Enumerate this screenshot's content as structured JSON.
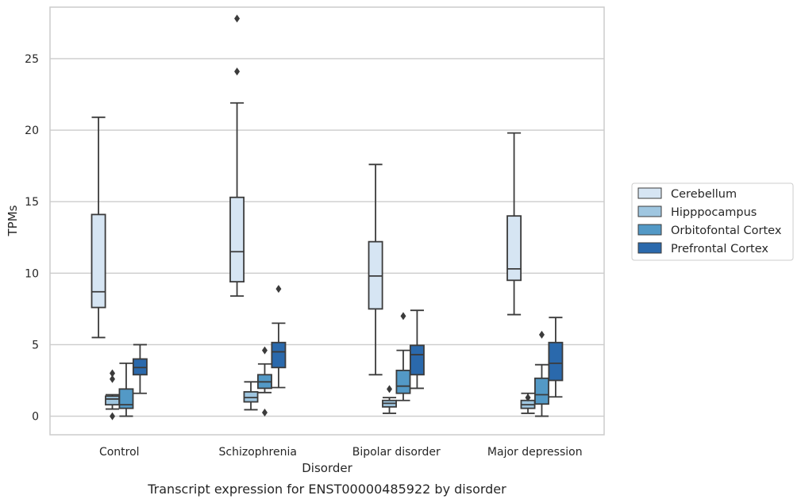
{
  "caption": "Transcript expression for ENST00000485922 by disorder",
  "chart_data": {
    "type": "box",
    "xlabel": "Disorder",
    "ylabel": "TPMs",
    "ylim": [
      -1.3,
      28.6
    ],
    "yticks": [
      0,
      5,
      10,
      15,
      20,
      25
    ],
    "grid": "horizontal",
    "legend_position": "right",
    "categories": [
      "Control",
      "Schizophrenia",
      "Bipolar disorder",
      "Major depression"
    ],
    "series": [
      {
        "name": "Cerebellum",
        "color": "#d6e5f3",
        "boxes": [
          {
            "whisker_low": 5.5,
            "q1": 7.6,
            "median": 8.7,
            "q3": 14.1,
            "whisker_high": 20.9,
            "outliers": []
          },
          {
            "whisker_low": 8.4,
            "q1": 9.4,
            "median": 11.5,
            "q3": 15.3,
            "whisker_high": 21.9,
            "outliers": [
              24.1,
              27.8
            ]
          },
          {
            "whisker_low": 2.9,
            "q1": 7.5,
            "median": 9.8,
            "q3": 12.2,
            "whisker_high": 17.6,
            "outliers": []
          },
          {
            "whisker_low": 7.1,
            "q1": 9.5,
            "median": 10.3,
            "q3": 14.0,
            "whisker_high": 19.8,
            "outliers": []
          }
        ]
      },
      {
        "name": "Hipppocampus",
        "color": "#9fc6e0",
        "boxes": [
          {
            "whisker_low": 0.5,
            "q1": 0.8,
            "median": 1.2,
            "q3": 1.4,
            "whisker_high": 1.5,
            "outliers": [
              0.0,
              2.6,
              3.0
            ]
          },
          {
            "whisker_low": 0.45,
            "q1": 1.0,
            "median": 1.3,
            "q3": 1.7,
            "whisker_high": 2.4,
            "outliers": []
          },
          {
            "whisker_low": 0.2,
            "q1": 0.65,
            "median": 0.9,
            "q3": 1.1,
            "whisker_high": 1.3,
            "outliers": [
              1.9
            ]
          },
          {
            "whisker_low": 0.2,
            "q1": 0.55,
            "median": 0.8,
            "q3": 1.1,
            "whisker_high": 1.6,
            "outliers": [
              1.3
            ]
          }
        ]
      },
      {
        "name": "Orbitofontal Cortex",
        "color": "#5399c6",
        "boxes": [
          {
            "whisker_low": 0.0,
            "q1": 0.55,
            "median": 0.8,
            "q3": 1.9,
            "whisker_high": 3.7,
            "outliers": []
          },
          {
            "whisker_low": 1.65,
            "q1": 1.95,
            "median": 2.4,
            "q3": 2.9,
            "whisker_high": 3.65,
            "outliers": [
              0.25,
              4.6
            ]
          },
          {
            "whisker_low": 1.1,
            "q1": 1.6,
            "median": 2.1,
            "q3": 3.2,
            "whisker_high": 4.6,
            "outliers": [
              7.0
            ]
          },
          {
            "whisker_low": 0.0,
            "q1": 0.85,
            "median": 1.5,
            "q3": 2.65,
            "whisker_high": 3.6,
            "outliers": [
              5.7
            ]
          }
        ]
      },
      {
        "name": "Prefrontal Cortex",
        "color": "#2a69ac",
        "boxes": [
          {
            "whisker_low": 1.6,
            "q1": 2.9,
            "median": 3.4,
            "q3": 4.0,
            "whisker_high": 5.0,
            "outliers": []
          },
          {
            "whisker_low": 2.0,
            "q1": 3.4,
            "median": 4.5,
            "q3": 5.15,
            "whisker_high": 6.5,
            "outliers": [
              8.9
            ]
          },
          {
            "whisker_low": 1.95,
            "q1": 2.9,
            "median": 4.3,
            "q3": 4.95,
            "whisker_high": 7.4,
            "outliers": []
          },
          {
            "whisker_low": 1.35,
            "q1": 2.5,
            "median": 3.7,
            "q3": 5.15,
            "whisker_high": 6.9,
            "outliers": []
          }
        ]
      }
    ]
  }
}
